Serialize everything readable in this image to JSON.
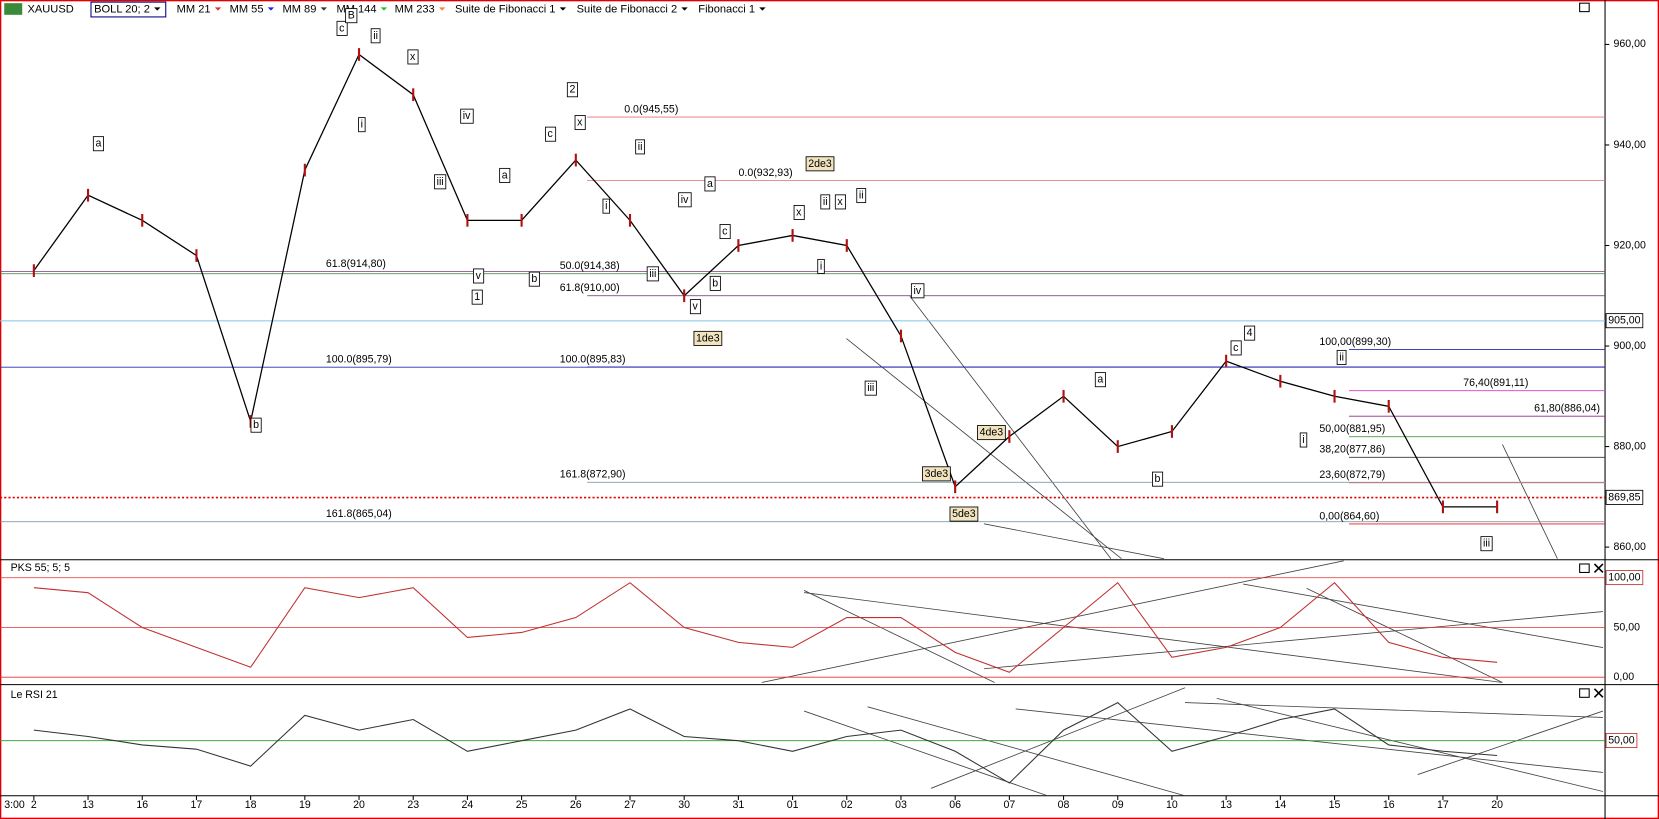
{
  "toolbar": {
    "symbol": "XAUUSD",
    "indicators": [
      "BOLL  20; 2",
      "MM 21",
      "MM 55",
      "MM 89",
      "MM 144",
      "MM 233",
      "Suite de Fibonacci 1",
      "Suite de Fibonacci 2",
      "Fibonacci 1"
    ]
  },
  "time_axis": {
    "start": "3:00"
  },
  "chart_data": {
    "type": "line",
    "categories": [
      "2",
      "13",
      "16",
      "17",
      "18",
      "19",
      "20",
      "23",
      "24",
      "25",
      "26",
      "27",
      "30",
      "31",
      "01",
      "02",
      "03",
      "06",
      "07",
      "08",
      "09",
      "10",
      "13",
      "14",
      "15",
      "16",
      "17",
      "20"
    ],
    "series": [
      {
        "name": "XAUUSD",
        "color": "#000000",
        "values": [
          915,
          930,
          925,
          918,
          885,
          935,
          958,
          950,
          925,
          925,
          937,
          925,
          910,
          920,
          922,
          920,
          902,
          872,
          882,
          890,
          880,
          883,
          897,
          893,
          890,
          888,
          868,
          868
        ]
      }
    ],
    "ylim": [
      857.9,
      965.05
    ],
    "yticks": [
      {
        "value": 860,
        "label": "860,00"
      },
      {
        "value": 880,
        "label": "880,00"
      },
      {
        "value": 900,
        "label": "900,00"
      },
      {
        "value": 920,
        "label": "920,00"
      },
      {
        "value": 940,
        "label": "940,00"
      },
      {
        "value": 960,
        "label": "960,00"
      }
    ],
    "ref_level": {
      "value": 905,
      "label": "905,00",
      "color": "#7fc6e0"
    },
    "last_price": {
      "value": 869.85,
      "label": "869,85",
      "color": "#e00000"
    },
    "fib_levels": [
      {
        "label": "0.0(945,55)",
        "value": 945.55,
        "color": "#e07070"
      },
      {
        "label": "0.0(932,93)",
        "value": 932.93,
        "color": "#e07070"
      },
      {
        "label": "61.8(914,80)",
        "value": 914.8,
        "color": "#7a3a7a"
      },
      {
        "label": "50.0(914,38)",
        "value": 914.38,
        "color": "#3a7a3a"
      },
      {
        "label": "61.8(910,00)",
        "value": 910.0,
        "color": "#6a2a6a"
      },
      {
        "label": "100.0(895,79)",
        "value": 895.79,
        "color": "#2a2ab0"
      },
      {
        "label": "100.0(895,83)",
        "value": 895.83,
        "color": "#2a2ab0"
      },
      {
        "label": "161.8(872,90)",
        "value": 872.9,
        "color": "#6a8a9a"
      },
      {
        "label": "161.8(865,04)",
        "value": 865.04,
        "color": "#6a8a9a"
      },
      {
        "label": "100,00(899,30)",
        "value": 899.3,
        "color": "#2a2ab0"
      },
      {
        "label": "76,40(891,11)",
        "value": 891.11,
        "color": "#d040c0"
      },
      {
        "label": "61,80(886,04)",
        "value": 886.04,
        "color": "#8a2a8a"
      },
      {
        "label": "50,00(881,95)",
        "value": 881.95,
        "color": "#2a8a2a"
      },
      {
        "label": "38,20(877,86)",
        "value": 877.86,
        "color": "#333333"
      },
      {
        "label": "23,60(872,79)",
        "value": 872.79,
        "color": "#e08080"
      },
      {
        "label": "0,00(864,60)",
        "value": 864.6,
        "color": "#e02020"
      }
    ]
  },
  "waves": [
    "a",
    "b",
    "c",
    "B",
    "ii",
    "i",
    "x",
    "iv",
    "iii",
    "v",
    "1",
    "a",
    "b",
    "c",
    "2",
    "x",
    "ii",
    "i",
    "iii",
    "iv",
    "a",
    "c",
    "b",
    "v",
    "1de3",
    "2de3",
    "x",
    "ii",
    "x",
    "ii",
    "i",
    "iv",
    "iii",
    "4de3",
    "3de3",
    "5de3",
    "a",
    "b",
    "c",
    "4",
    "ii",
    "i",
    "iii"
  ],
  "indicators": [
    {
      "name": "PKS 55; 5; 5",
      "color": "#c03030",
      "values": [
        90,
        85,
        50,
        30,
        10,
        90,
        80,
        90,
        40,
        45,
        60,
        95,
        50,
        35,
        30,
        60,
        60,
        25,
        5,
        50,
        95,
        20,
        30,
        50,
        95,
        35,
        20,
        15
      ],
      "ylim": [
        -5.3,
        114.9
      ],
      "yticks": [
        {
          "value": 0,
          "label": "0,00"
        },
        {
          "value": 50,
          "label": "50,00"
        },
        {
          "value": 100,
          "label": "100,00"
        }
      ]
    },
    {
      "name": "Le RSI 21",
      "color": "#333333",
      "values": [
        55,
        52,
        48,
        46,
        38,
        62,
        55,
        60,
        45,
        50,
        55,
        65,
        52,
        50,
        45,
        52,
        55,
        45,
        30,
        55,
        68,
        45,
        52,
        60,
        65,
        48,
        45,
        43
      ],
      "ylim": [
        27.5,
        74
      ],
      "yticks": [
        {
          "value": 50,
          "label": "50,00"
        }
      ]
    }
  ]
}
